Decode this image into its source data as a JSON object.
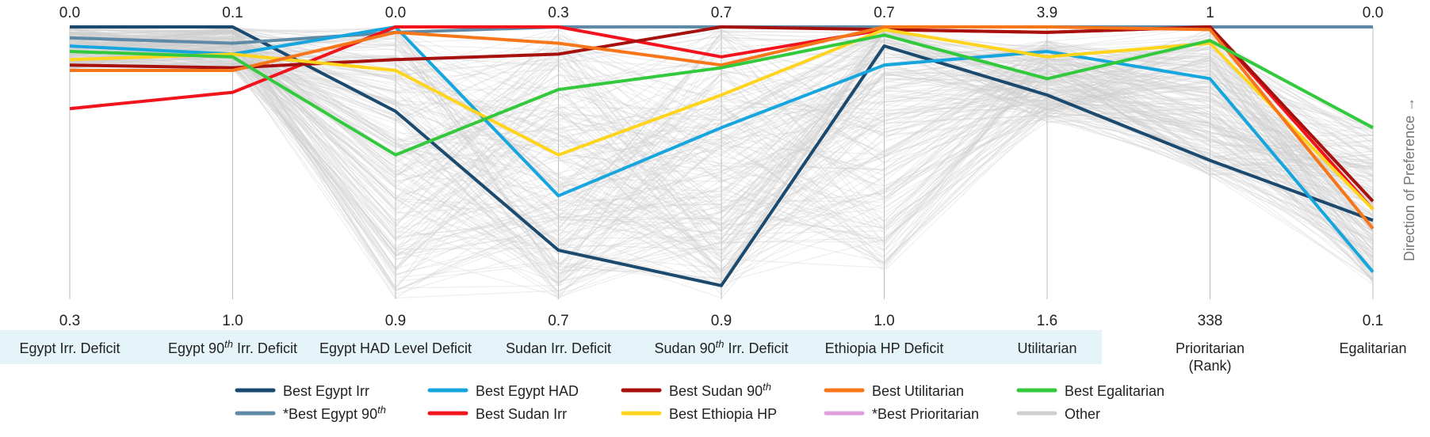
{
  "chart_data": {
    "type": "parallel-coordinates",
    "preference_label": "Direction of Preference →",
    "axes": [
      {
        "label": "Egypt Irr. Deficit",
        "top": "0.0",
        "bottom": "0.3",
        "highlighted": true
      },
      {
        "label": "Egypt 90<sup>th</sup> Irr. Deficit",
        "top": "0.1",
        "bottom": "1.0",
        "highlighted": true
      },
      {
        "label": "Egypt HAD Level Deficit",
        "top": "0.0",
        "bottom": "0.9",
        "highlighted": true
      },
      {
        "label": "Sudan Irr. Deficit",
        "top": "0.3",
        "bottom": "0.7",
        "highlighted": true
      },
      {
        "label": "Sudan 90<sup>th</sup> Irr. Deficit",
        "top": "0.7",
        "bottom": "0.9",
        "highlighted": true
      },
      {
        "label": "Ethiopia HP Deficit",
        "top": "0.7",
        "bottom": "1.0",
        "highlighted": true
      },
      {
        "label": "Utilitarian",
        "top": "3.9",
        "bottom": "1.6",
        "highlighted": true
      },
      {
        "label": "Prioritarian\n(Rank)",
        "top": "1",
        "bottom": "338",
        "highlighted": false
      },
      {
        "label": "Egalitarian",
        "top": "0.0",
        "bottom": "0.1",
        "highlighted": false
      }
    ],
    "series": [
      {
        "name": "Best Egypt Irr",
        "color": "#1b4a6e",
        "values": [
          0.0,
          0.0,
          0.31,
          0.82,
          0.95,
          0.07,
          0.25,
          0.49,
          0.71
        ]
      },
      {
        "name": "*Best Egypt 90<sup>th</sup>",
        "color": "#5f8aa6",
        "values": [
          0.04,
          0.06,
          0.02,
          0.0,
          0.0,
          0.0,
          0.0,
          0.0,
          0.0
        ]
      },
      {
        "name": "Best Egypt HAD",
        "color": "#17a5de",
        "values": [
          0.07,
          0.1,
          0.0,
          0.62,
          0.37,
          0.14,
          0.09,
          0.19,
          0.9
        ]
      },
      {
        "name": "Best Sudan Irr",
        "color": "#f2141c",
        "values": [
          0.3,
          0.24,
          0.0,
          0.0,
          0.11,
          0.01,
          0.02,
          0.0,
          0.67
        ]
      },
      {
        "name": "Best Sudan 90<sup>th</sup>",
        "color": "#a6110e",
        "values": [
          0.14,
          0.15,
          0.12,
          0.1,
          0.0,
          0.01,
          0.02,
          0.0,
          0.64
        ]
      },
      {
        "name": "Best Ethiopia HP",
        "color": "#ffd41c",
        "values": [
          0.12,
          0.1,
          0.16,
          0.47,
          0.25,
          0.01,
          0.11,
          0.06,
          0.67
        ]
      },
      {
        "name": "Best Utilitarian",
        "color": "#f7761a",
        "values": [
          0.16,
          0.16,
          0.02,
          0.06,
          0.14,
          0.0,
          0.0,
          0.01,
          0.74
        ]
      },
      {
        "name": "*Best Prioritarian",
        "color": "#e29fde",
        "values": [
          0.0,
          0.0,
          0.0,
          0.0,
          0.0,
          0.0,
          0.0,
          0.0,
          0.0
        ]
      },
      {
        "name": "Best Egalitarian",
        "color": "#33c93c",
        "values": [
          0.09,
          0.11,
          0.47,
          0.23,
          0.15,
          0.03,
          0.19,
          0.05,
          0.37
        ]
      }
    ],
    "other": {
      "name": "Other",
      "color": "#cfcfcf"
    }
  }
}
